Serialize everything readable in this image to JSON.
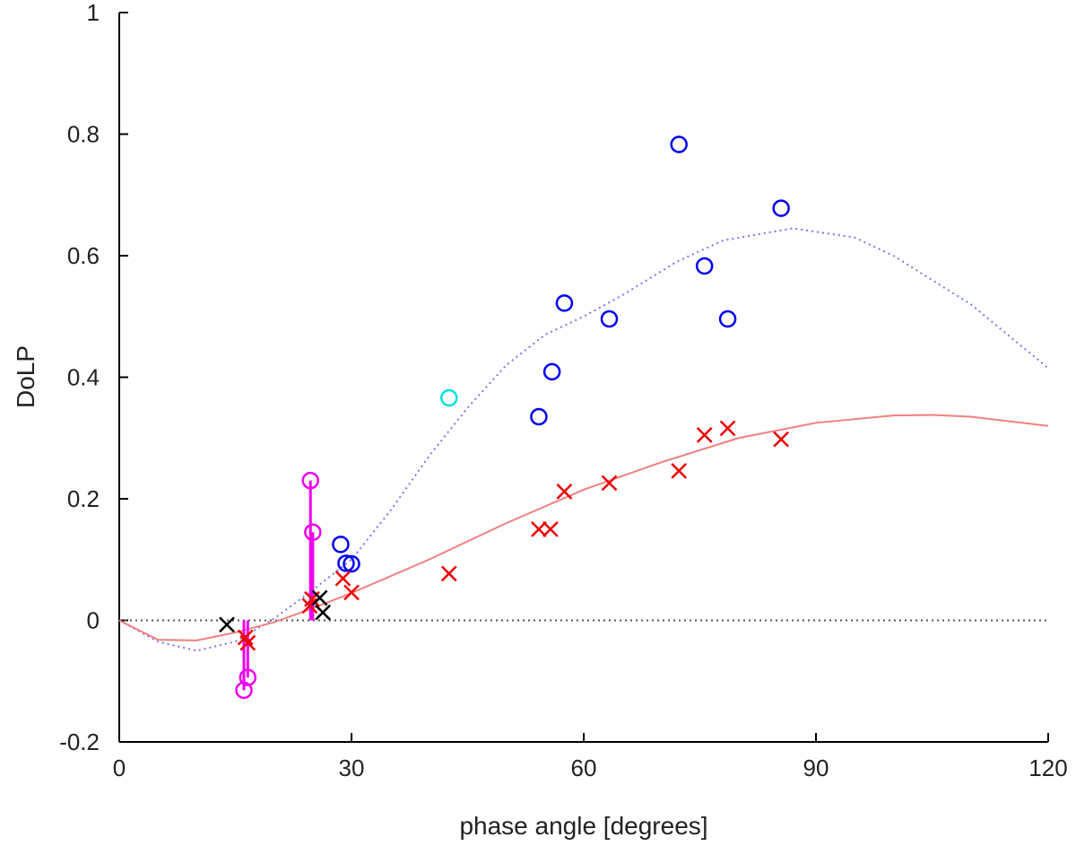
{
  "chart_data": {
    "type": "scatter",
    "xlabel": "phase angle [degrees]",
    "ylabel": "DoLP",
    "xlim": [
      0,
      120
    ],
    "ylim": [
      -0.2,
      1
    ],
    "xticks": [
      "0",
      "30",
      "60",
      "90",
      "120"
    ],
    "xtick_values": [
      0,
      30,
      60,
      90,
      120
    ],
    "yticks": [
      "-0.2",
      "0",
      "0.2",
      "0.4",
      "0.6",
      "0.8",
      "1"
    ],
    "ytick_values": [
      -0.2,
      0,
      0.2,
      0.4,
      0.6,
      0.8,
      1
    ],
    "grid": false,
    "reference_line": {
      "y": 0,
      "color": "#555555",
      "style": "dotted"
    },
    "series": [
      {
        "marker": "circle",
        "color": "#0000ee",
        "x": [
          28.6,
          29.3,
          30.0,
          54.2,
          55.9,
          57.5,
          63.3,
          72.3,
          75.6,
          78.6,
          85.5
        ],
        "y": [
          0.125,
          0.094,
          0.093,
          0.335,
          0.409,
          0.522,
          0.496,
          0.783,
          0.583,
          0.496,
          0.678
        ]
      },
      {
        "marker": "circle",
        "color": "#00e0e0",
        "x": [
          42.6
        ],
        "y": [
          0.366
        ]
      },
      {
        "marker": "circle",
        "color": "#ee00ee",
        "x": [
          24.7,
          25.0,
          16.6,
          16.1
        ],
        "y": [
          0.23,
          0.145,
          -0.094,
          -0.115
        ],
        "stem_to_zero": true
      },
      {
        "marker": "x",
        "color": "#ee0000",
        "x": [
          16.3,
          16.6,
          24.6,
          24.9,
          28.9,
          30.0,
          42.6,
          54.2,
          55.7,
          57.5,
          63.3,
          72.3,
          75.6,
          78.6,
          85.5
        ],
        "y": [
          -0.028,
          -0.037,
          0.024,
          0.035,
          0.069,
          0.046,
          0.077,
          0.15,
          0.15,
          0.212,
          0.226,
          0.246,
          0.305,
          0.316,
          0.298
        ]
      },
      {
        "marker": "x",
        "color": "#000000",
        "x": [
          13.9,
          25.9,
          26.3
        ],
        "y": [
          -0.007,
          0.037,
          0.013
        ]
      },
      {
        "line": "dotted",
        "color": "#7777ee",
        "x": [
          0,
          5,
          10,
          15,
          20,
          25,
          30,
          35,
          40,
          45,
          50,
          55,
          60,
          65,
          72,
          78,
          87,
          95,
          100,
          110,
          120
        ],
        "y": [
          0,
          -0.035,
          -0.05,
          -0.035,
          0.003,
          0.05,
          0.1,
          0.18,
          0.27,
          0.35,
          0.42,
          0.47,
          0.5,
          0.535,
          0.59,
          0.625,
          0.645,
          0.63,
          0.6,
          0.52,
          0.415
        ]
      },
      {
        "line": "solid",
        "color": "#f08080",
        "x": [
          0,
          5,
          10,
          15,
          20,
          25,
          30,
          40,
          50,
          60,
          70,
          80,
          90,
          100,
          105,
          110,
          120
        ],
        "y": [
          0,
          -0.032,
          -0.033,
          -0.02,
          -0.003,
          0.02,
          0.045,
          0.1,
          0.16,
          0.215,
          0.26,
          0.3,
          0.325,
          0.337,
          0.338,
          0.335,
          0.32
        ]
      }
    ]
  }
}
